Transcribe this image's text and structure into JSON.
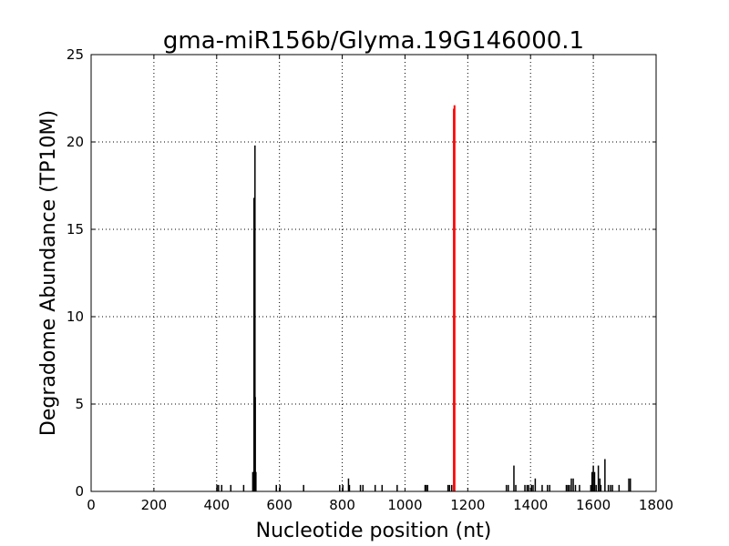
{
  "chart_data": {
    "type": "bar",
    "title": "gma-miR156b/Glyma.19G146000.1",
    "xlabel": "Nucleotide position (nt)",
    "ylabel": "Degradome Abundance (TP10M)",
    "xlim": [
      0,
      1800
    ],
    "ylim": [
      0,
      25
    ],
    "xticks": [
      "0",
      "200",
      "400",
      "600",
      "800",
      "1000",
      "1200",
      "1400",
      "1600",
      "1800"
    ],
    "yticks": [
      "0",
      "5",
      "10",
      "15",
      "20",
      "25"
    ],
    "grid": true,
    "colors": {
      "default": "#000000",
      "highlight": "#ff0000"
    },
    "series": [
      {
        "name": "degradome",
        "color": "#000000",
        "points": [
          [
            401,
            0.37
          ],
          [
            406,
            0.37
          ],
          [
            416,
            0.37
          ],
          [
            445,
            0.37
          ],
          [
            486,
            0.37
          ],
          [
            515,
            1.11
          ],
          [
            517,
            1.11
          ],
          [
            519,
            16.8
          ],
          [
            520,
            16.8
          ],
          [
            522,
            19.8
          ],
          [
            523,
            5.4
          ],
          [
            525,
            1.11
          ],
          [
            590,
            0.37
          ],
          [
            602,
            0.37
          ],
          [
            677,
            0.37
          ],
          [
            792,
            0.37
          ],
          [
            802,
            0.37
          ],
          [
            820,
            0.74
          ],
          [
            823,
            0.37
          ],
          [
            858,
            0.37
          ],
          [
            866,
            0.37
          ],
          [
            905,
            0.37
          ],
          [
            927,
            0.37
          ],
          [
            975,
            0.37
          ],
          [
            1064,
            0.37
          ],
          [
            1067,
            0.37
          ],
          [
            1072,
            0.37
          ],
          [
            1137,
            0.37
          ],
          [
            1142,
            0.37
          ],
          [
            1149,
            0.37
          ],
          [
            1323,
            0.37
          ],
          [
            1329,
            0.37
          ],
          [
            1347,
            1.48
          ],
          [
            1353,
            0.37
          ],
          [
            1382,
            0.37
          ],
          [
            1389,
            0.37
          ],
          [
            1394,
            0.37
          ],
          [
            1403,
            0.37
          ],
          [
            1408,
            0.37
          ],
          [
            1415,
            0.74
          ],
          [
            1437,
            0.37
          ],
          [
            1454,
            0.37
          ],
          [
            1461,
            0.37
          ],
          [
            1514,
            0.37
          ],
          [
            1519,
            0.37
          ],
          [
            1524,
            0.37
          ],
          [
            1530,
            0.74
          ],
          [
            1536,
            0.74
          ],
          [
            1543,
            0.37
          ],
          [
            1556,
            0.37
          ],
          [
            1592,
            0.37
          ],
          [
            1596,
            1.11
          ],
          [
            1600,
            1.48
          ],
          [
            1604,
            1.11
          ],
          [
            1609,
            0.37
          ],
          [
            1616,
            1.48
          ],
          [
            1621,
            0.74
          ],
          [
            1624,
            0.37
          ],
          [
            1637,
            1.85
          ],
          [
            1648,
            0.37
          ],
          [
            1655,
            0.37
          ],
          [
            1661,
            0.37
          ],
          [
            1682,
            0.37
          ],
          [
            1713,
            0.74
          ],
          [
            1718,
            0.74
          ]
        ]
      },
      {
        "name": "target site",
        "color": "#ff0000",
        "points": [
          [
            1155,
            21.9
          ],
          [
            1157,
            22.1
          ]
        ]
      }
    ]
  }
}
